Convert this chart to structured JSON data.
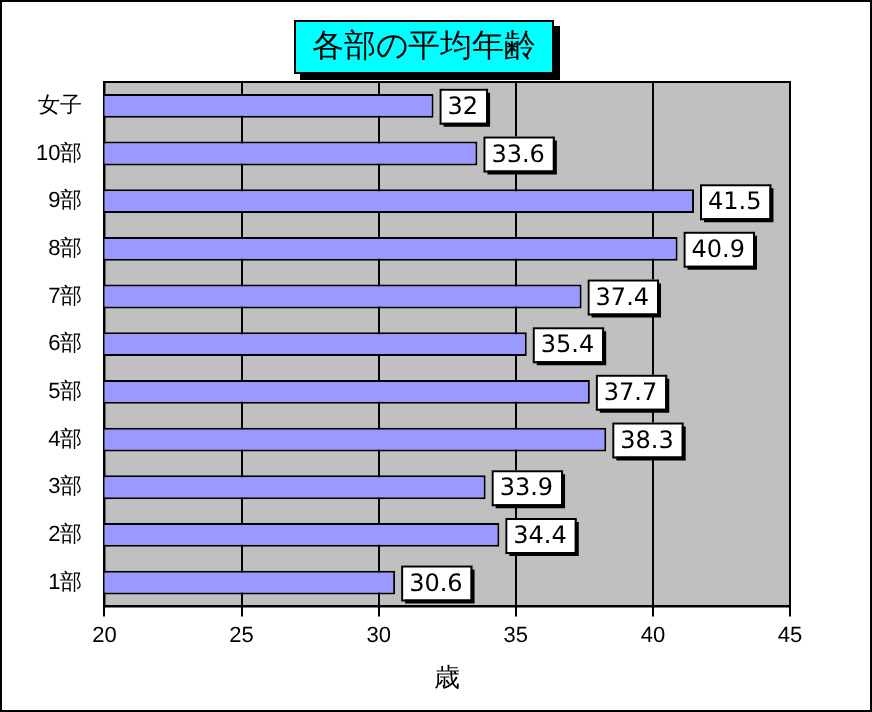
{
  "chart_data": {
    "type": "bar",
    "orientation": "horizontal",
    "title": "各部の平均年齢",
    "xlabel": "歳",
    "categories": [
      "女子",
      "10部",
      "9部",
      "8部",
      "7部",
      "6部",
      "5部",
      "4部",
      "3部",
      "2部",
      "1部"
    ],
    "values": [
      32,
      33.6,
      41.5,
      40.9,
      37.4,
      35.4,
      37.7,
      38.3,
      33.9,
      34.4,
      30.6
    ],
    "color": "#9999ff",
    "xlim": [
      20,
      45
    ],
    "xticks": [
      20,
      25,
      30,
      35,
      40,
      45
    ],
    "grid": "x",
    "data_labels": true,
    "legend": false
  }
}
